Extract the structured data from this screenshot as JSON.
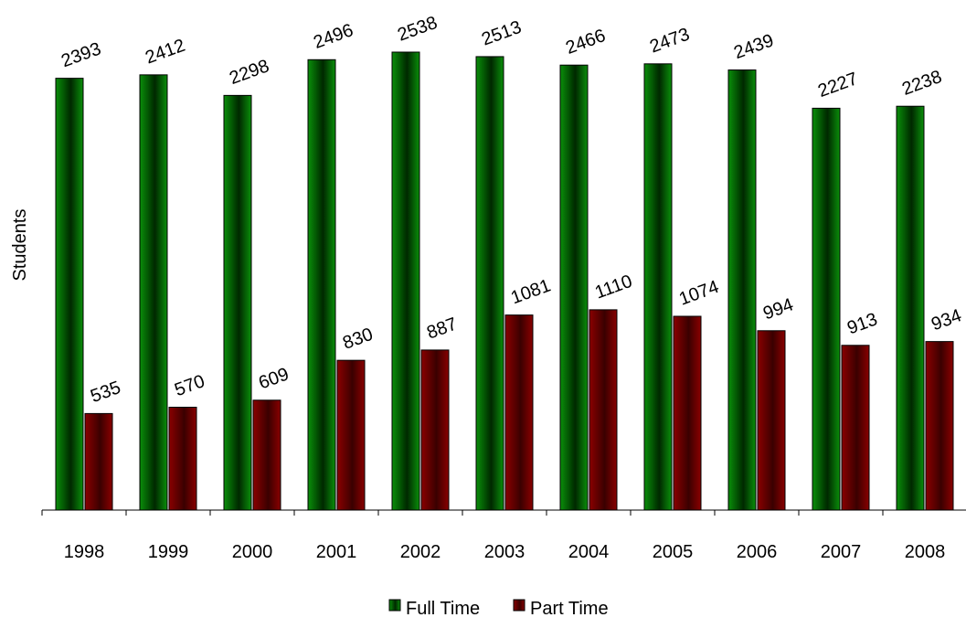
{
  "chart_data": {
    "type": "bar",
    "title": "",
    "xlabel": "",
    "ylabel": "Students",
    "categories": [
      "1998",
      "1999",
      "2000",
      "2001",
      "2002",
      "2003",
      "2004",
      "2005",
      "2006",
      "2007",
      "2008"
    ],
    "series": [
      {
        "name": "Full Time",
        "values": [
          2393,
          2412,
          2298,
          2496,
          2538,
          2513,
          2466,
          2473,
          2439,
          2227,
          2238
        ],
        "color": "#008000"
      },
      {
        "name": "Part Time",
        "values": [
          535,
          570,
          609,
          830,
          887,
          1081,
          1110,
          1074,
          994,
          913,
          934
        ],
        "color": "#800000"
      }
    ],
    "ylim": [
      0,
      2538
    ],
    "grid": false,
    "data_labels": true,
    "legend_position": "bottom"
  }
}
